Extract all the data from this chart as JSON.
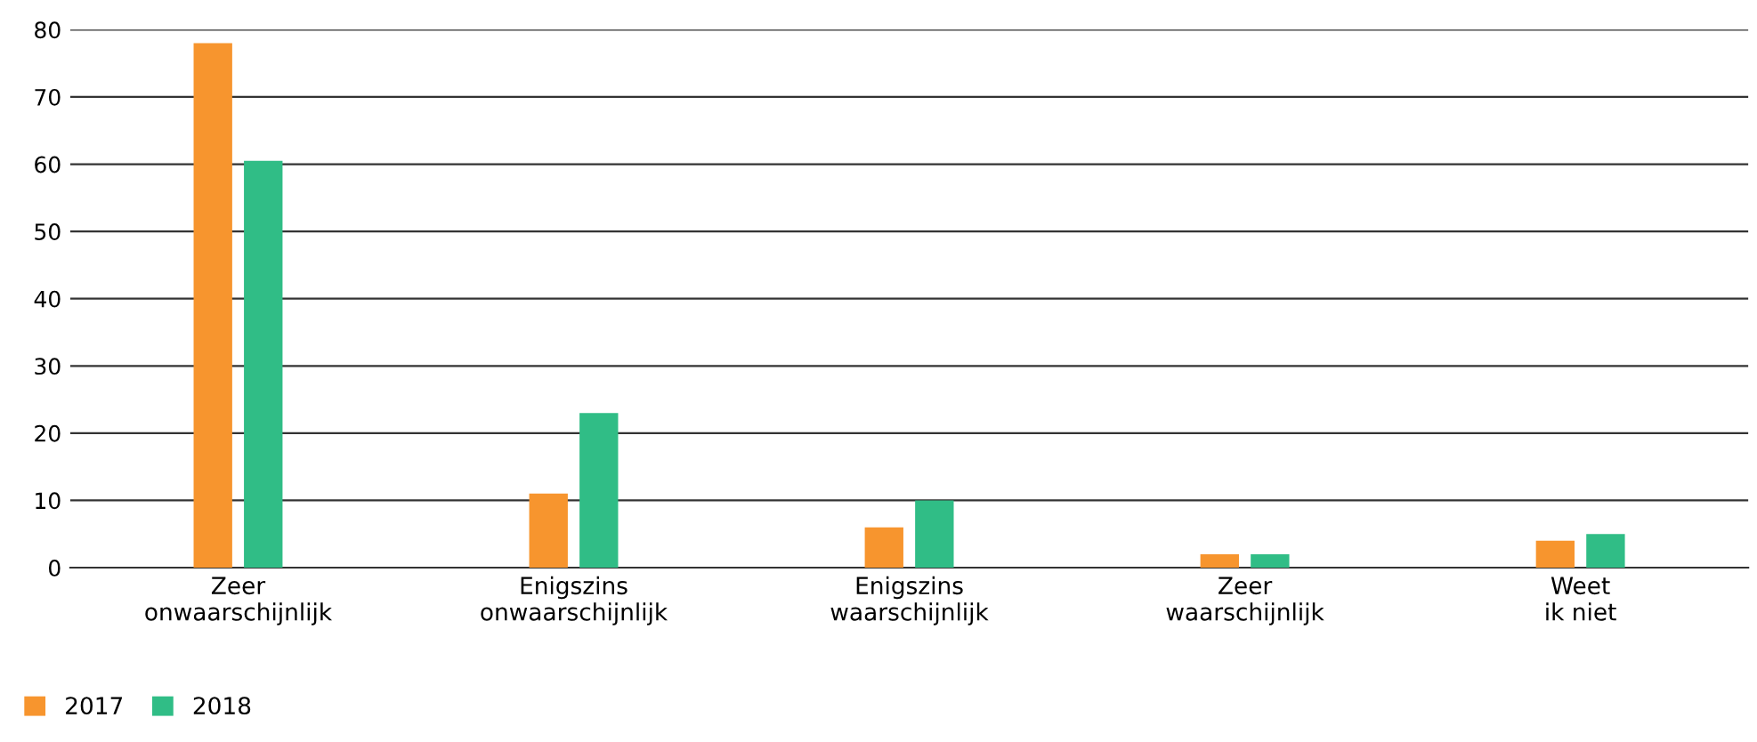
{
  "chart_data": {
    "type": "bar",
    "categories": [
      "Zeer\nonwaarschijnlijk",
      "Enigszins\nonwaarschijnlijk",
      "Enigszins\nwaarschijnlijk",
      "Zeer\nwaarschijnlijk",
      "Weet\nik niet"
    ],
    "series": [
      {
        "name": "2017",
        "color": "#f7952e",
        "values": [
          78,
          11,
          6,
          2,
          4
        ]
      },
      {
        "name": "2018",
        "color": "#30bd86",
        "values": [
          60.5,
          23,
          10,
          2,
          5
        ]
      }
    ],
    "ylim": [
      0,
      80
    ],
    "yticks": [
      0,
      10,
      20,
      30,
      40,
      50,
      60,
      70,
      80
    ],
    "grid": "y",
    "legend": "bottom left"
  }
}
